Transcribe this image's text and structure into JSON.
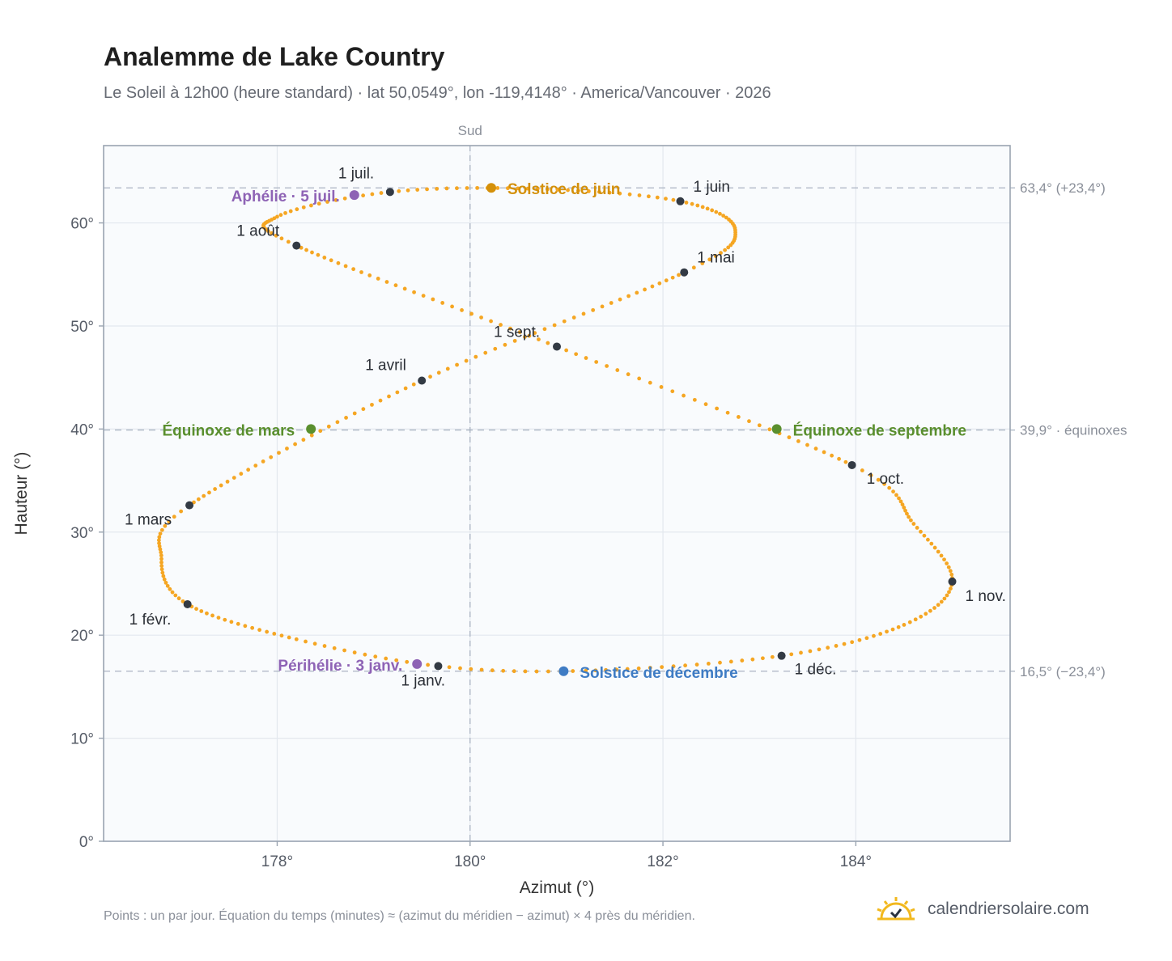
{
  "header": {
    "title": "Analemme de Lake Country",
    "subtitle": "Le Soleil à 12h00 (heure standard) · lat 50,0549°, lon -119,4148° · America/Vancouver · 2026"
  },
  "footer": {
    "note": "Points : un par jour. Équation du temps (minutes) ≈ (azimut du méridien − azimut) × 4 près du méridien.",
    "brand": "calendriersolaire.com",
    "brand_icon": "sun-icon"
  },
  "chart_data": {
    "type": "scatter",
    "xlabel": "Azimut (°)",
    "ylabel": "Hauteur (°)",
    "xlim": [
      176.2,
      185.6
    ],
    "ylim": [
      0,
      67.5
    ],
    "x_ticks": [
      178,
      180,
      182,
      184
    ],
    "x_tick_labels": [
      "178°",
      "180°",
      "182°",
      "184°"
    ],
    "y_ticks": [
      0,
      10,
      20,
      30,
      40,
      50,
      60
    ],
    "y_tick_labels": [
      "0°",
      "10°",
      "20°",
      "30°",
      "40°",
      "50°",
      "60°"
    ],
    "grid": true,
    "south_label": "Sud",
    "meridian_azimuth": 180,
    "colors": {
      "analemma": "#f5a623",
      "month_marker": "#333a44",
      "june_solstice": "#d4900a",
      "december_solstice": "#3f7cc4",
      "equinox": "#5a8f2e",
      "apsis": "#8e63b5",
      "reference_line": "#aab4c2"
    },
    "reference_lines": [
      {
        "y": 63.4,
        "label": "63,4° (+23,4°)"
      },
      {
        "y": 39.9,
        "label": "39,9° · équinoxes"
      },
      {
        "y": 16.5,
        "label": "16,5° (−23,4°)"
      }
    ],
    "month_markers": [
      {
        "label": "1 janv.",
        "x": 179.67,
        "y": 17.0
      },
      {
        "label": "1 févr.",
        "x": 177.07,
        "y": 23.0
      },
      {
        "label": "1 mars",
        "x": 177.09,
        "y": 32.6
      },
      {
        "label": "1 avril",
        "x": 179.5,
        "y": 44.7
      },
      {
        "label": "1 mai",
        "x": 182.22,
        "y": 55.2
      },
      {
        "label": "1 juin",
        "x": 182.18,
        "y": 62.1
      },
      {
        "label": "1 juil.",
        "x": 179.17,
        "y": 63.0
      },
      {
        "label": "1 août",
        "x": 178.2,
        "y": 57.8
      },
      {
        "label": "1 sept.",
        "x": 180.9,
        "y": 48.0
      },
      {
        "label": "1 oct.",
        "x": 183.96,
        "y": 36.5
      },
      {
        "label": "1 nov.",
        "x": 185.0,
        "y": 25.2
      },
      {
        "label": "1 déc.",
        "x": 183.23,
        "y": 18.0
      }
    ],
    "events": [
      {
        "label": "Solstice de juin",
        "x": 180.22,
        "y": 63.4,
        "kind": "june_solstice"
      },
      {
        "label": "Aphélie · 5 juil.",
        "x": 178.8,
        "y": 62.7,
        "kind": "apsis"
      },
      {
        "label": "Équinoxe de mars",
        "x": 178.35,
        "y": 40.0,
        "kind": "equinox"
      },
      {
        "label": "Équinoxe de septembre",
        "x": 183.18,
        "y": 40.0,
        "kind": "equinox"
      },
      {
        "label": "Périhélie · 3 janv.",
        "x": 179.45,
        "y": 17.2,
        "kind": "apsis"
      },
      {
        "label": "Solstice de décembre",
        "x": 180.97,
        "y": 16.5,
        "kind": "december_solstice"
      }
    ]
  }
}
